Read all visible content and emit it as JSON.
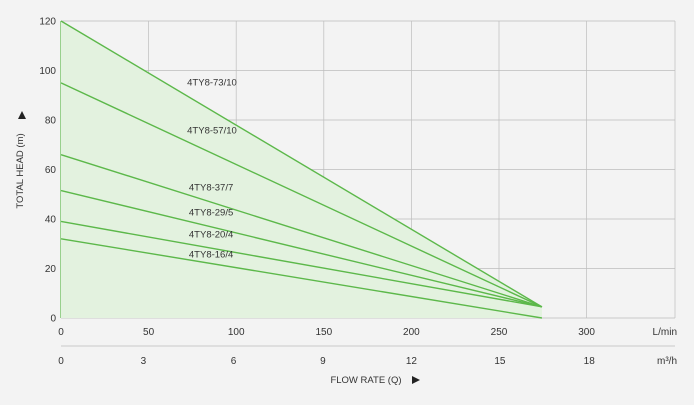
{
  "chart_data": {
    "type": "line",
    "ylabel": "TOTAL HEAD (m)",
    "xlabel": "FLOW RATE (Q)",
    "x_unit_primary": "L/min",
    "x_unit_secondary": "m³/h",
    "xlim": [
      0,
      350
    ],
    "ylim": [
      0,
      120
    ],
    "grid": true,
    "x_ticks_primary": [
      0,
      50,
      100,
      150,
      200,
      250,
      300
    ],
    "x_ticks_secondary": [
      {
        "label": "0",
        "lpm": 0
      },
      {
        "label": "3",
        "lpm": 47
      },
      {
        "label": "6",
        "lpm": 98.5
      },
      {
        "label": "9",
        "lpm": 149.5
      },
      {
        "label": "12",
        "lpm": 200
      },
      {
        "label": "15",
        "lpm": 250.5
      },
      {
        "label": "18",
        "lpm": 301.5
      }
    ],
    "y_ticks": [
      0,
      20,
      40,
      60,
      80,
      100,
      120
    ],
    "colors": {
      "line": "#5cb84a",
      "fill": "#e3f2df",
      "grid": "#bdbdbd",
      "text": "#333333"
    },
    "envelope": {
      "x": [
        0,
        274.5,
        274.5
      ],
      "y": [
        120,
        4.5,
        0
      ]
    },
    "series": [
      {
        "name": "4TY8-73/10",
        "x": [
          0,
          274.5
        ],
        "y": [
          120,
          4.5
        ],
        "label_at": [
          72,
          94
        ]
      },
      {
        "name": "4TY8-57/10",
        "x": [
          0,
          274.5
        ],
        "y": [
          95,
          4.5
        ],
        "label_at": [
          72,
          74.5
        ]
      },
      {
        "name": "4TY8-37/7",
        "x": [
          0,
          274.5
        ],
        "y": [
          66,
          4.5
        ],
        "label_at": [
          73,
          51.5
        ]
      },
      {
        "name": "4TY8-29/5",
        "x": [
          0,
          274.5
        ],
        "y": [
          51.5,
          4.5
        ],
        "label_at": [
          73,
          41.5
        ]
      },
      {
        "name": "4TY8-20/4",
        "x": [
          0,
          274.5
        ],
        "y": [
          39,
          4.5
        ],
        "label_at": [
          73,
          32.5
        ]
      },
      {
        "name": "4TY8-16/4",
        "x": [
          0,
          274.5
        ],
        "y": [
          32,
          0
        ],
        "label_at": [
          73,
          24.5
        ]
      }
    ]
  }
}
